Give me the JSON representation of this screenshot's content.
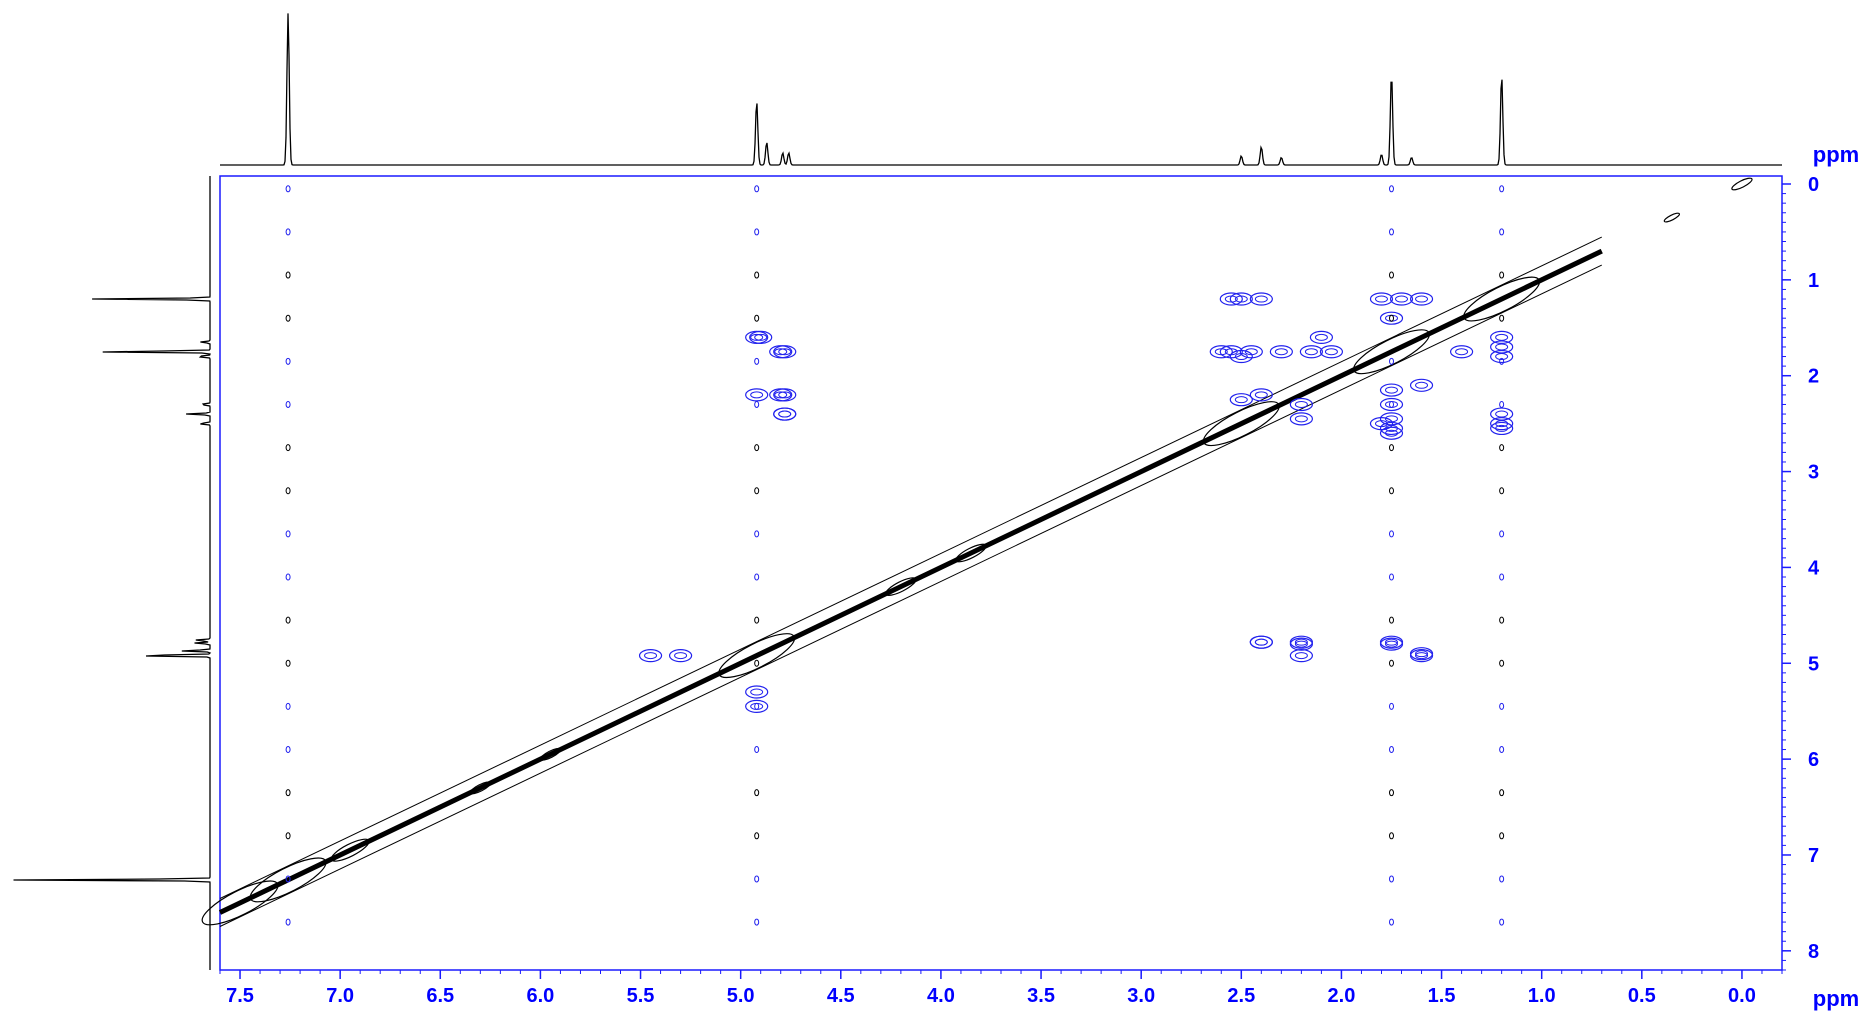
{
  "chart_data": {
    "type": "scatter",
    "subtype": "2D NMR contour plot (COSY-style, symmetric about diagonal)",
    "xlabel": "ppm",
    "ylabel": "ppm",
    "xlim": [
      7.6,
      -0.2
    ],
    "ylim": [
      0,
      8.2
    ],
    "x_ticks": [
      "7.5",
      "7.0",
      "6.5",
      "6.0",
      "5.5",
      "5.0",
      "4.5",
      "4.0",
      "3.5",
      "3.0",
      "2.5",
      "2.0",
      "1.5",
      "1.0",
      "0.5",
      "0.0"
    ],
    "y_ticks": [
      "0",
      "1",
      "2",
      "3",
      "4",
      "5",
      "6",
      "7",
      "8"
    ],
    "grid": false,
    "colors": {
      "frame": "#1a1aff",
      "tick_text": "#0000ff",
      "positive_contour": "#000000",
      "negative_contour": "#2222ee"
    },
    "projection_1d": {
      "peaks": [
        {
          "ppm": 7.26,
          "height": 1.0
        },
        {
          "ppm": 4.92,
          "height": 0.42
        },
        {
          "ppm": 4.87,
          "height": 0.15
        },
        {
          "ppm": 4.79,
          "height": 0.08
        },
        {
          "ppm": 4.76,
          "height": 0.08
        },
        {
          "ppm": 1.75,
          "height": 0.6
        },
        {
          "ppm": 1.2,
          "height": 0.59
        },
        {
          "ppm": 2.4,
          "height": 0.12
        },
        {
          "ppm": 2.5,
          "height": 0.06
        },
        {
          "ppm": 2.3,
          "height": 0.05
        },
        {
          "ppm": 1.8,
          "height": 0.07
        },
        {
          "ppm": 1.65,
          "height": 0.05
        }
      ]
    },
    "diagonal_peaks": [
      {
        "ppm": 7.5,
        "size": 3
      },
      {
        "ppm": 7.26,
        "size": 3
      },
      {
        "ppm": 6.95,
        "size": 1.5
      },
      {
        "ppm": 6.3,
        "size": 0.8
      },
      {
        "ppm": 5.95,
        "size": 0.8
      },
      {
        "ppm": 4.92,
        "size": 3
      },
      {
        "ppm": 4.2,
        "size": 1.2
      },
      {
        "ppm": 3.85,
        "size": 1.2
      },
      {
        "ppm": 2.5,
        "size": 3
      },
      {
        "ppm": 1.75,
        "size": 3
      },
      {
        "ppm": 1.2,
        "size": 3
      },
      {
        "ppm": 0.35,
        "size": 0.6
      },
      {
        "ppm": 0.0,
        "size": 0.8
      }
    ],
    "cross_peaks": [
      {
        "x": 2.55,
        "y": 1.2
      },
      {
        "x": 2.4,
        "y": 1.2
      },
      {
        "x": 1.8,
        "y": 1.2
      },
      {
        "x": 1.7,
        "y": 1.2
      },
      {
        "x": 2.55,
        "y": 1.75
      },
      {
        "x": 2.45,
        "y": 1.75
      },
      {
        "x": 2.3,
        "y": 1.75
      },
      {
        "x": 2.15,
        "y": 1.75
      },
      {
        "x": 2.05,
        "y": 1.75
      },
      {
        "x": 1.4,
        "y": 1.75
      },
      {
        "x": 2.5,
        "y": 2.25
      },
      {
        "x": 2.4,
        "y": 2.2
      },
      {
        "x": 2.2,
        "y": 2.3
      },
      {
        "x": 1.6,
        "y": 2.1
      },
      {
        "x": 1.8,
        "y": 2.5
      },
      {
        "x": 1.75,
        "y": 2.6
      },
      {
        "x": 2.2,
        "y": 2.45
      },
      {
        "x": 4.92,
        "y": 1.6
      },
      {
        "x": 4.78,
        "y": 1.75
      },
      {
        "x": 4.78,
        "y": 2.2
      },
      {
        "x": 4.78,
        "y": 2.4
      },
      {
        "x": 4.92,
        "y": 2.2
      },
      {
        "x": 2.4,
        "y": 4.78
      },
      {
        "x": 2.2,
        "y": 4.8
      },
      {
        "x": 1.75,
        "y": 4.8
      },
      {
        "x": 1.6,
        "y": 4.9
      },
      {
        "x": 5.45,
        "y": 4.92
      },
      {
        "x": 5.3,
        "y": 4.92
      },
      {
        "x": 1.2,
        "y": 1.6
      },
      {
        "x": 1.2,
        "y": 2.5
      }
    ]
  }
}
